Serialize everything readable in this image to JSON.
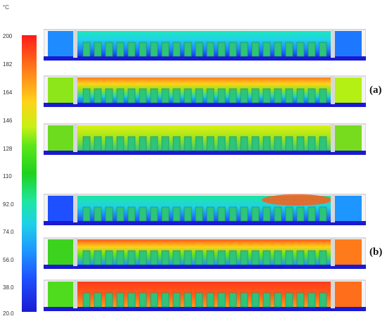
{
  "legend": {
    "unit": "°C",
    "ticks": [
      "200",
      "182",
      "164",
      "146",
      "128",
      "110",
      "92.0",
      "74.0",
      "56.0",
      "38.0",
      "20.0"
    ]
  },
  "labels": {
    "a": "(a)",
    "b": "(b)"
  },
  "colors": {
    "frame": "#f0f0f0",
    "floor": "#1a1ad2",
    "rack": "#2ec47a",
    "pillar": "#d8d8d8"
  },
  "panels": [
    {
      "group": "a",
      "scheme": "cool"
    },
    {
      "group": "a",
      "scheme": "hot"
    },
    {
      "group": "a",
      "scheme": "warm"
    },
    {
      "group": "b",
      "scheme": "cool-hot-right"
    },
    {
      "group": "b",
      "scheme": "hot-mixed"
    },
    {
      "group": "b",
      "scheme": "hottest"
    }
  ]
}
